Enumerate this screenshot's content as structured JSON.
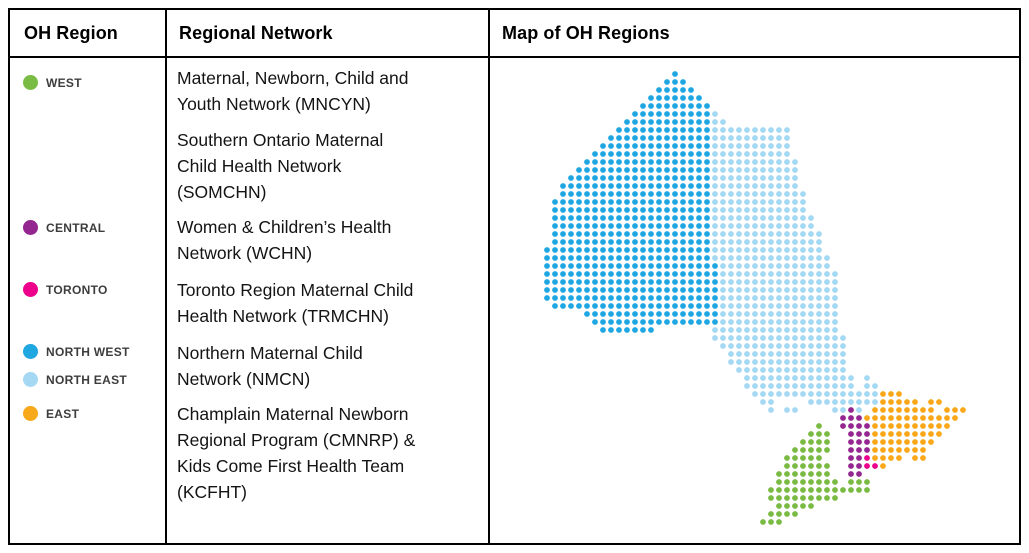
{
  "header": {
    "col1": "OH Region",
    "col2": "Regional Network",
    "col3": "Map of OH Regions"
  },
  "legend": {
    "items": [
      {
        "label": "WEST",
        "color": "#7abc43"
      },
      {
        "label": "CENTRAL",
        "color": "#93278f"
      },
      {
        "label": "TORONTO",
        "color": "#ec008c"
      },
      {
        "label": "NORTH WEST",
        "color": "#1fa7e1"
      },
      {
        "label": "NORTH EAST",
        "color": "#a5d8f3"
      },
      {
        "label": "EAST",
        "color": "#f8a81b"
      }
    ]
  },
  "networks": {
    "items": [
      {
        "label": "Maternal, Newborn, Child and\nYouth Network (MNCYN)"
      },
      {
        "label": "Southern Ontario Maternal\nChild Health Network\n(SOMCHN)"
      },
      {
        "label": "Women & Children’s Health\nNetwork (WCHN)"
      },
      {
        "label": "Toronto Region Maternal Child\nHealth Network (TRMCHN)"
      },
      {
        "label": "Northern Maternal Child\nNetwork (NMCN)"
      },
      {
        "label": "Champlain Maternal Newborn\nRegional Program (CMNRP) &\nKids Come First Health Team\n(KCFHT)"
      }
    ]
  },
  "map": {
    "description": "Dot-matrix map of Ontario Health regions",
    "palette": {
      "N": "#1fa7e1",
      "E": "#a5d8f3",
      "G": "#7abc43",
      "C": "#93278f",
      "T": "#ec008c",
      "O": "#f8a81b"
    },
    "region_names": {
      "N": "NORTH WEST",
      "E": "NORTH EAST",
      "G": "WEST",
      "C": "CENTRAL",
      "T": "TORONTO",
      "O": "EAST"
    },
    "rows": [
      "................N....................................",
      "...............NNN...................................",
      "..............NNNNN..................................",
      ".............NNNNNNN.................................",
      "............NNNNNNNNN................................",
      "...........NNNNNNNNNNE...............................",
      "..........NNNNNNNNNNNEE..............................",
      ".........NNNNNNNNNNNNEEEEEEEEEE......................",
      "........NNNNNNNNNNNNNEEEEEEEEEE......................",
      ".......NNNNNNNNNNNNNNEEEEEEEEEE......................",
      "......NNNNNNNNNNNNNNNEEEEEEEEEE......................",
      ".....NNNNNNNNNNNNNNNNEEEEEEEEEEE.....................",
      "....NNNNNNNNNNNNNNNNNEEEEEEEEEEE.....................",
      "...NNNNNNNNNNNNNNNNNNEEEEEEEEEEE.....................",
      "..NNNNNNNNNNNNNNNNNNNEEEEEEEEEEE.....................",
      "..NNNNNNNNNNNNNNNNNNNEEEEEEEEEEEE....................",
      ".NNNNNNNNNNNNNNNNNNNNEEEEEEEEEEEE....................",
      ".NNNNNNNNNNNNNNNNNNNNEEEEEEEEEEEE....................",
      ".NNNNNNNNNNNNNNNNNNNNEEEEEEEEEEEEE...................",
      ".NNNNNNNNNNNNNNNNNNNNEEEEEEEEEEEEE...................",
      ".NNNNNNNNNNNNNNNNNNNNEEEEEEEEEEEEEE..................",
      ".NNNNNNNNNNNNNNNNNNNNEEEEEEEEEEEEEE..................",
      "NNNNNNNNNNNNNNNNNNNNNEEEEEEEEEEEEEE..................",
      "NNNNNNNNNNNNNNNNNNNNNEEEEEEEEEEEEEEE.................",
      "NNNNNNNNNNNNNNNNNNNNNNEEEEEEEEEEEEEE.................",
      "NNNNNNNNNNNNNNNNNNNNNNEEEEEEEEEEEEEEE................",
      "NNNNNNNNNNNNNNNNNNNNNNEEEEEEEEEEEEEEE................",
      "NNNNNNNNNNNNNNNNNNNNNNEEEEEEEEEEEEEEE................",
      "NNNNNNNNNNNNNNNNNNNNNNEEEEEEEEEEEEEEE................",
      ".NNNNNNNNNNNNNNNNNNNNNEEEEEEEEEEEEEEE................",
      ".....NNNNNNNNNNNNNNNNNEEEEEEEEEEEEEEE................",
      "......NNNNNNNNNNNNNNNNEEEEEEEEEEEEEEE................",
      ".......NNNNNNN.......EEEEEEEEEEEEEEEE................",
      ".....................EEEEEEEEEEEEEEEEE...............",
      "......................EEEEEEEEEEEEEEEE...............",
      ".......................EEEEEEEEEEEEEEE...............",
      ".......................EEEEEEEEEEEEEEE...............",
      "........................EEEEEEEEEEEEEE...............",
      ".........................EEEEEEEEEEEEEE.E............",
      ".........................EEEEEEEEEEEEEE.EE...........",
      "..........................EEEEEEEEEEEEEEEEOOO........",
      "...........................EE....EEEEEEEEEOOOOO.OO...",
      "............................E.EE....EECE.OOOOOOOO.OOO",
      ".....................................CCCOOOOOOOOOOOO.",
      "..................................G..CCCCOOOOOOOOOO..",
      ".................................GGG..CCCOOOOOOOOO...",
      "................................GGGG..CCCOOOOOOOO....",
      "...............................GGGGG..CCCOOOOOOO.....",
      "..............................GGGGG...CCTOOOO.OO.....",
      "..............................GGGGGG..CCTTO..........",
      ".............................GGGGGGG..CC.............",
      ".............................GGGGGGGG.GGG............",
      "............................GGGGGGGGGGGGG............",
      "............................GGGGGGGGG................",
      ".............................GGGGG...................",
      "............................GGGG.....................",
      "...........................GGG......................."
    ]
  }
}
